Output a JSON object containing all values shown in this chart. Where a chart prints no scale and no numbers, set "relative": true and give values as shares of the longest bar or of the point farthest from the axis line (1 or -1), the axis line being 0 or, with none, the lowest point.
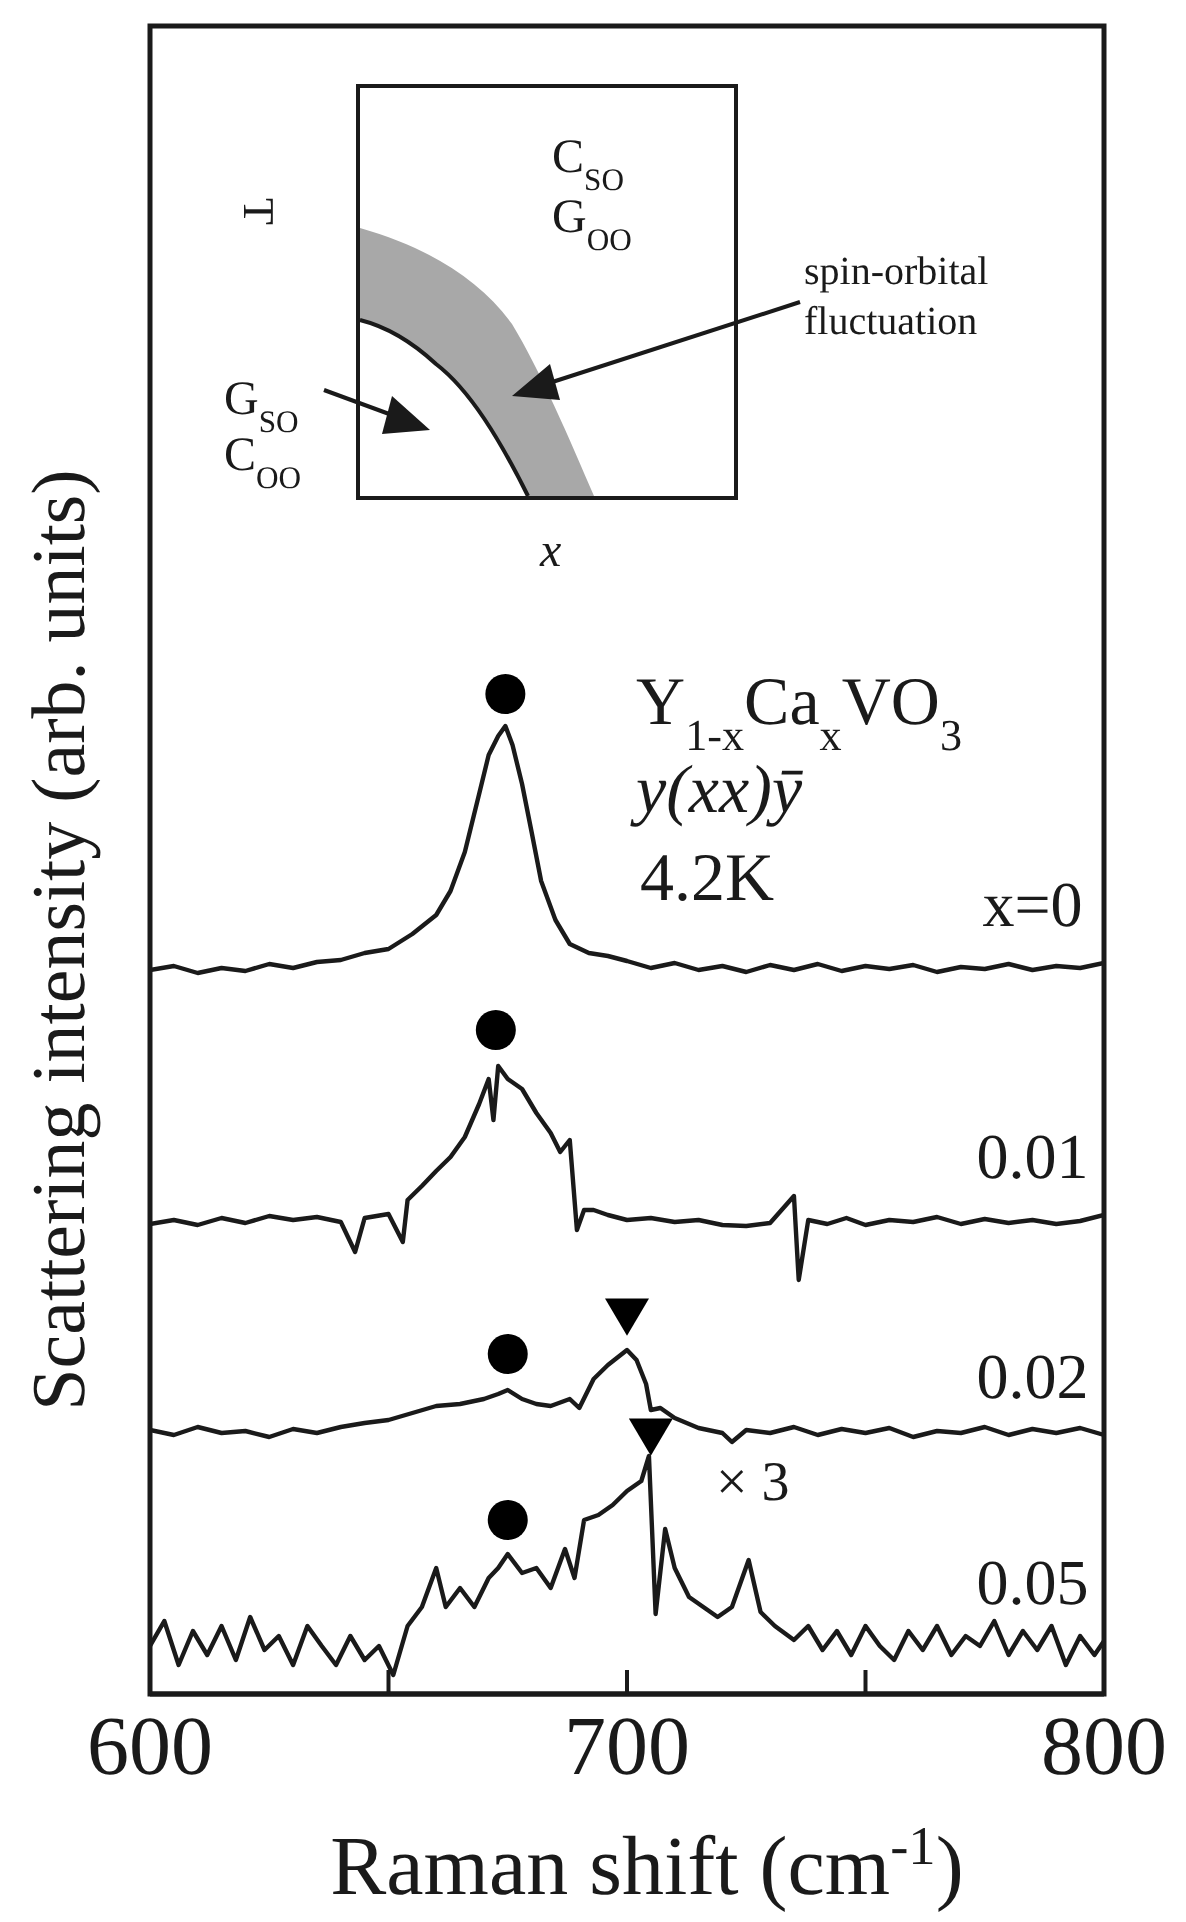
{
  "chart_data": {
    "type": "line",
    "xlabel": "Raman shift (cm$^{-1}$)",
    "ylabel": "Scattering intensity (arb. units)",
    "relative": true,
    "xlim": [
      600,
      800
    ],
    "xticks": [
      600,
      {
        "value": 650,
        "label": null
      },
      700,
      {
        "value": 750,
        "label": null
      },
      800
    ],
    "series": [
      {
        "name": "x=0",
        "color": "#1a1a1a",
        "x": [
          600,
          605,
          610,
          615,
          620,
          625,
          630,
          635,
          640,
          645,
          650,
          655,
          660,
          663,
          666,
          669,
          671,
          673,
          674.5,
          676,
          678,
          680,
          682,
          685,
          688,
          692,
          696,
          700,
          705,
          710,
          715,
          720,
          725,
          730,
          735,
          740,
          745,
          750,
          755,
          760,
          765,
          770,
          775,
          780,
          785,
          790,
          795,
          800
        ],
        "values": [
          0.724,
          0.728,
          0.721,
          0.726,
          0.723,
          0.73,
          0.726,
          0.732,
          0.734,
          0.741,
          0.745,
          0.76,
          0.779,
          0.803,
          0.842,
          0.9,
          0.939,
          0.958,
          0.968,
          0.949,
          0.91,
          0.862,
          0.813,
          0.774,
          0.75,
          0.741,
          0.738,
          0.733,
          0.726,
          0.731,
          0.724,
          0.728,
          0.722,
          0.729,
          0.724,
          0.73,
          0.723,
          0.728,
          0.725,
          0.729,
          0.722,
          0.727,
          0.725,
          0.73,
          0.724,
          0.728,
          0.726,
          0.731
        ]
      },
      {
        "name": "0.01",
        "color": "#1a1a1a",
        "x": [
          600,
          605,
          610,
          615,
          620,
          625,
          630,
          635,
          640,
          643,
          645,
          650,
          653,
          654,
          657,
          660,
          663,
          666,
          669,
          671,
          672,
          673,
          675,
          678,
          681,
          684,
          686,
          688,
          689.5,
          691,
          693,
          696,
          700,
          705,
          710,
          715,
          720,
          725,
          730,
          735,
          736,
          738,
          742,
          746,
          750,
          755,
          760,
          765,
          770,
          775,
          780,
          785,
          790,
          795,
          800
        ],
        "values": [
          0.47,
          0.474,
          0.469,
          0.476,
          0.471,
          0.478,
          0.474,
          0.477,
          0.472,
          0.442,
          0.476,
          0.48,
          0.452,
          0.494,
          0.508,
          0.523,
          0.537,
          0.557,
          0.59,
          0.615,
          0.574,
          0.628,
          0.615,
          0.605,
          0.581,
          0.561,
          0.542,
          0.554,
          0.464,
          0.484,
          0.484,
          0.479,
          0.474,
          0.476,
          0.472,
          0.474,
          0.469,
          0.468,
          0.471,
          0.498,
          0.414,
          0.474,
          0.47,
          0.476,
          0.469,
          0.474,
          0.472,
          0.477,
          0.47,
          0.475,
          0.471,
          0.474,
          0.47,
          0.473,
          0.479
        ]
      },
      {
        "name": "0.02",
        "color": "#1a1a1a",
        "x": [
          600,
          605,
          610,
          615,
          620,
          625,
          630,
          635,
          640,
          645,
          650,
          655,
          660,
          665,
          670,
          673,
          675,
          678,
          681,
          684,
          688,
          690,
          693,
          696,
          700,
          702,
          704,
          705,
          707,
          710,
          715,
          720,
          722,
          725,
          730,
          735,
          740,
          745,
          750,
          755,
          760,
          765,
          770,
          775,
          780,
          785,
          790,
          795,
          800
        ],
        "values": [
          0.264,
          0.259,
          0.267,
          0.261,
          0.263,
          0.257,
          0.265,
          0.261,
          0.267,
          0.271,
          0.274,
          0.281,
          0.288,
          0.29,
          0.295,
          0.3,
          0.304,
          0.295,
          0.29,
          0.288,
          0.295,
          0.286,
          0.315,
          0.329,
          0.344,
          0.334,
          0.31,
          0.284,
          0.286,
          0.276,
          0.266,
          0.261,
          0.252,
          0.264,
          0.261,
          0.267,
          0.259,
          0.265,
          0.261,
          0.266,
          0.257,
          0.263,
          0.261,
          0.267,
          0.259,
          0.265,
          0.261,
          0.266,
          0.259
        ]
      },
      {
        "name": "0.05",
        "color": "#1a1a1a",
        "x": [
          600,
          603,
          606,
          609,
          612,
          615,
          618,
          621,
          624,
          627,
          630,
          633,
          636,
          639,
          642,
          645,
          648,
          651,
          654,
          657,
          660,
          662,
          665,
          668,
          671,
          673,
          675,
          678,
          681,
          684,
          687,
          689,
          691,
          694,
          697,
          700,
          703,
          704.6,
          706,
          708,
          710,
          713,
          716,
          719,
          722,
          725.5,
          728,
          731,
          735,
          738,
          741,
          744,
          747,
          750,
          753,
          756,
          759,
          762,
          765,
          768,
          771,
          774,
          777,
          780,
          783,
          786,
          789,
          792,
          795,
          798,
          800
        ],
        "values": [
          0.048,
          0.073,
          0.029,
          0.063,
          0.039,
          0.068,
          0.034,
          0.077,
          0.044,
          0.058,
          0.029,
          0.068,
          0.048,
          0.029,
          0.058,
          0.034,
          0.048,
          0.019,
          0.068,
          0.087,
          0.126,
          0.087,
          0.106,
          0.087,
          0.116,
          0.126,
          0.14,
          0.121,
          0.126,
          0.106,
          0.145,
          0.116,
          0.174,
          0.179,
          0.189,
          0.203,
          0.213,
          0.238,
          0.08,
          0.165,
          0.126,
          0.097,
          0.087,
          0.077,
          0.087,
          0.134,
          0.082,
          0.068,
          0.054,
          0.068,
          0.044,
          0.063,
          0.039,
          0.068,
          0.048,
          0.034,
          0.063,
          0.044,
          0.068,
          0.039,
          0.058,
          0.048,
          0.073,
          0.039,
          0.063,
          0.044,
          0.068,
          0.029,
          0.058,
          0.039,
          0.053
        ]
      },
      {
        "type": "scatter",
        "marker": "circle",
        "color": "#000000",
        "x": [
          674.5,
          672.5,
          675,
          675
        ],
        "values": [
          1.0,
          0.664,
          0.34,
          0.174
        ]
      },
      {
        "type": "scatter",
        "marker": "triangle",
        "color": "#000000",
        "x": [
          700,
          705
        ],
        "values": [
          0.378,
          0.258
        ]
      }
    ],
    "annotations": [
      "Y$_{1-x}$Ca$_{x}$VO$_{3}$",
      "y(xx)ȳ",
      "4.2K",
      "T",
      "x",
      "C$_{SO}$",
      "G$_{OO}$",
      "G$_{SO}$",
      "C$_{OO}$",
      "spin-orbital fluctuation",
      "× 3"
    ]
  }
}
